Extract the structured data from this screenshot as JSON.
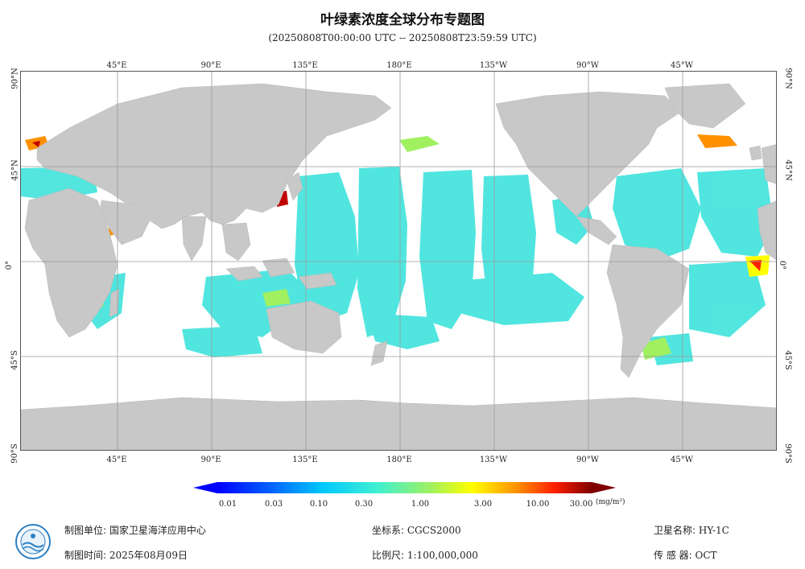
{
  "header": {
    "title": "叶绿素浓度全球分布专题图",
    "subtitle": "(20250808T00:00:00 UTC -- 20250808T23:59:59 UTC)"
  },
  "map": {
    "top_lon_labels": [
      "45°E",
      "90°E",
      "135°E",
      "180°E",
      "135°W",
      "90°W",
      "45°W"
    ],
    "bottom_lon_labels": [
      "45°E",
      "90°E",
      "135°E",
      "180°E",
      "135°W",
      "90°W",
      "45°W"
    ],
    "lat_labels": [
      "90°N",
      "45°N",
      "0°",
      "45°S",
      "90°S"
    ],
    "colors": {
      "land": "#c8c8c8",
      "ocean_nodata": "#ffffff",
      "grid": "#9a9a9a",
      "low_chl": "#3fe3dc"
    }
  },
  "legend": {
    "tick_labels": [
      "0.01",
      "0.03",
      "0.10",
      "0.30",
      "1.00",
      "3.00",
      "10.00",
      "30.00"
    ],
    "unit": "(mg/m³)",
    "colors": [
      "#0000ff",
      "#0080ff",
      "#00d0ff",
      "#40f0d0",
      "#a0f060",
      "#ffff00",
      "#ff9000",
      "#ff2000",
      "#800000"
    ]
  },
  "footer": {
    "producer_key": "制图单位:",
    "producer_val": "国家卫星海洋应用中心",
    "date_key": "制图时间:",
    "date_val": "2025年08月09日",
    "crs_key": "坐标系:",
    "crs_val": "CGCS2000",
    "scale_key": "比例尺:",
    "scale_val": "1:100,000,000",
    "satellite_key": "卫星名称:",
    "satellite_val": "HY-1C",
    "sensor_key": "传 感 器:",
    "sensor_val": "OCT"
  }
}
